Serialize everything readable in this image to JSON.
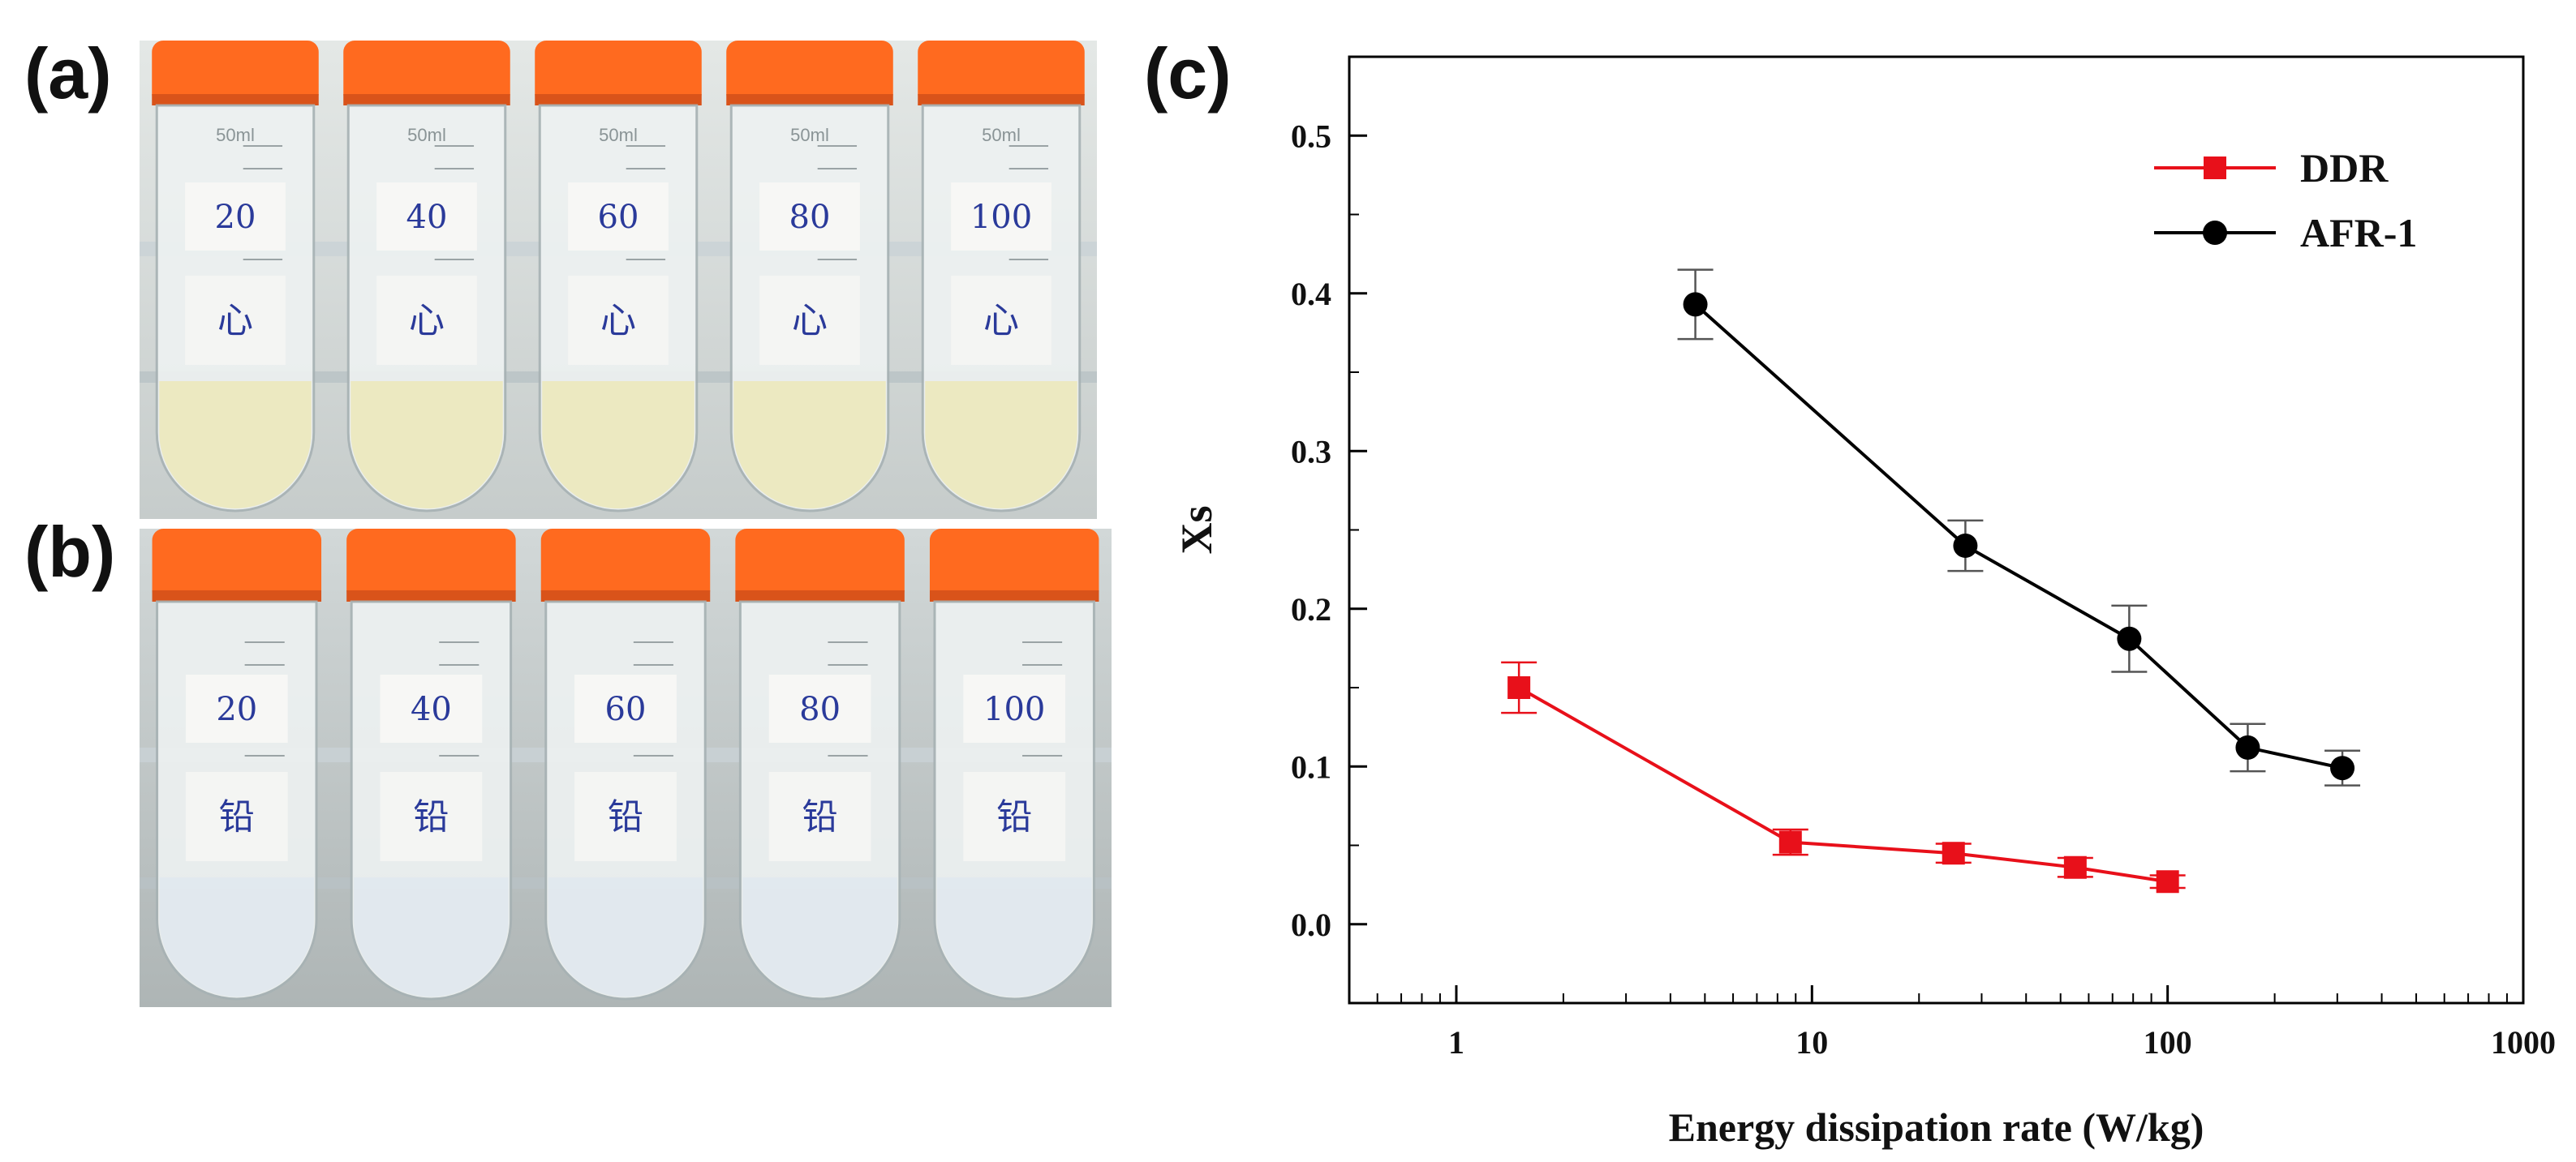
{
  "panels": {
    "a": {
      "label": "(a)",
      "tubes": [
        {
          "volume_mark": "50ml",
          "top_label": "20",
          "bottom_label": "心"
        },
        {
          "volume_mark": "50ml",
          "top_label": "40",
          "bottom_label": "心"
        },
        {
          "volume_mark": "50ml",
          "top_label": "60",
          "bottom_label": "心"
        },
        {
          "volume_mark": "50ml",
          "top_label": "80",
          "bottom_label": "心"
        },
        {
          "volume_mark": "50ml",
          "top_label": "100",
          "bottom_label": "心"
        }
      ]
    },
    "b": {
      "label": "(b)",
      "tubes": [
        {
          "top_label": "20",
          "bottom_label": "铅"
        },
        {
          "top_label": "40",
          "bottom_label": "铅"
        },
        {
          "top_label": "60",
          "bottom_label": "铅"
        },
        {
          "top_label": "80",
          "bottom_label": "铅"
        },
        {
          "top_label": "100",
          "bottom_label": "铅"
        }
      ]
    },
    "c": {
      "label": "(c)"
    }
  },
  "colors": {
    "cap": "#ff6a1f",
    "ddr": "#e8101a",
    "afr": "#000000",
    "liquid_a": "#ece8b8",
    "liquid_b": "#dfe8ef"
  },
  "chart_data": {
    "type": "line",
    "xscale": "log",
    "xlabel": "Energy dissipation rate (W/kg)",
    "ylabel": "Xs",
    "xlim": [
      0.5,
      1000
    ],
    "ylim": [
      -0.05,
      0.55
    ],
    "xticks": [
      1,
      10,
      100,
      1000
    ],
    "xtick_labels": [
      "1",
      "10",
      "100",
      "1000"
    ],
    "yticks": [
      0.0,
      0.1,
      0.2,
      0.3,
      0.4,
      0.5
    ],
    "ytick_labels": [
      "0.0",
      "0.1",
      "0.2",
      "0.3",
      "0.4",
      "0.5"
    ],
    "legend_position": "top-right",
    "series": [
      {
        "name": "DDR",
        "marker": "square",
        "color": "#e8101a",
        "x": [
          1.5,
          8.7,
          25,
          55,
          100
        ],
        "y": [
          0.15,
          0.052,
          0.045,
          0.036,
          0.027
        ],
        "err": [
          0.016,
          0.008,
          0.006,
          0.006,
          0.004
        ]
      },
      {
        "name": "AFR-1",
        "marker": "circle",
        "color": "#000000",
        "x": [
          4.7,
          27,
          78,
          168,
          310
        ],
        "y": [
          0.393,
          0.24,
          0.181,
          0.112,
          0.099
        ],
        "err": [
          0.022,
          0.016,
          0.021,
          0.015,
          0.011
        ]
      }
    ]
  }
}
